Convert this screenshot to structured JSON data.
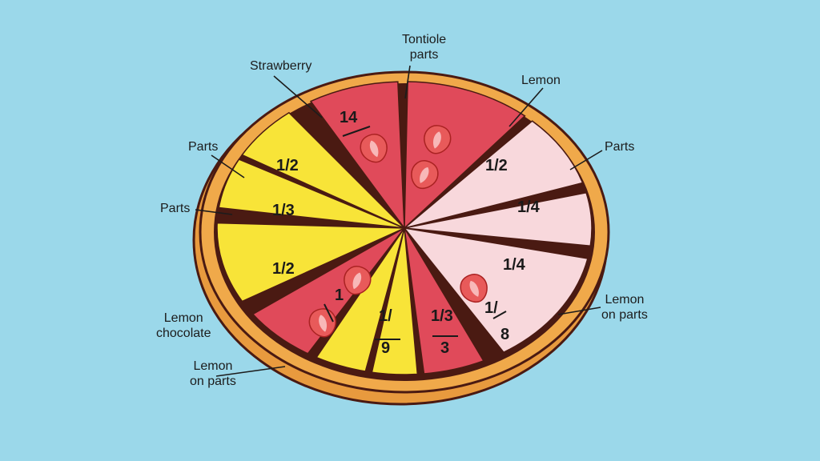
{
  "colors": {
    "background": "#9bd8ea",
    "crust": "#f0a94a",
    "chocolate": "#4a1a12",
    "strawberry": "#e04a5a",
    "lemon": "#f8e438",
    "pink": "#f8d8dc"
  },
  "callouts": {
    "strawberry": "Strawberry",
    "top_line1": "Tontiole",
    "top_line2": "parts",
    "lemon_top": "Lemon",
    "parts_right": "Parts",
    "parts_left_upper": "Parts",
    "parts_left": "Parts",
    "lemon_chocolate_1": "Lemon",
    "lemon_chocolate_2": "chocolate",
    "lemon_on_parts_left_1": "Lemon",
    "lemon_on_parts_left_2": "on parts",
    "lemon_on_parts_right_1": "Lemon",
    "lemon_on_parts_right_2": "on parts"
  },
  "slice_labels": {
    "strawberry_top": "14",
    "lemon_upper_left": "1/2",
    "lemon_left": "1/3",
    "lemon_lower_left": "1/2",
    "strawberry_lower_left": "1",
    "lemon_bottom_left_top": "1/",
    "lemon_bottom_left_bottom": "9",
    "lemon_bottom_right_top": "1/3",
    "lemon_bottom_right_bottom": "3",
    "strawberry_lower_right_top": "1/",
    "strawberry_lower_right_bottom": "8",
    "pink_upper": "1/2",
    "pink_middle": "1/4",
    "pink_lower": "1/4"
  }
}
